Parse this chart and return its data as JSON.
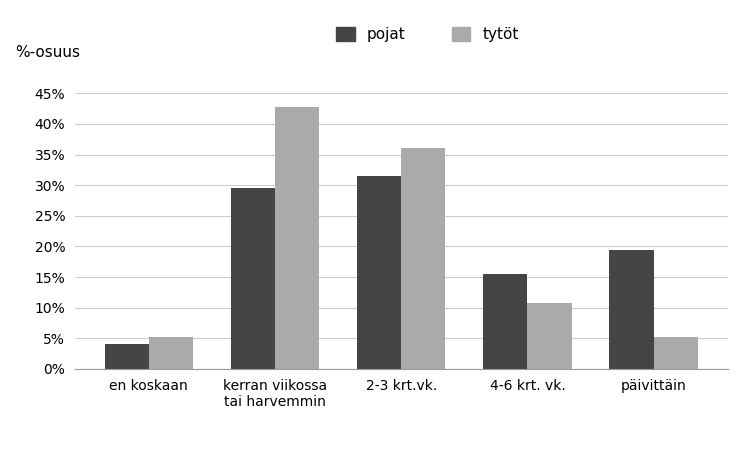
{
  "categories": [
    "en koskaan",
    "kerran viikossa\ntai harvemmin",
    "2-3 krt.vk.",
    "4-6 krt. vk.",
    "päivittäin"
  ],
  "pojat": [
    4.0,
    29.5,
    31.5,
    15.5,
    19.5
  ],
  "tytot": [
    5.3,
    42.7,
    36.0,
    10.7,
    5.3
  ],
  "pojat_color": "#454545",
  "tytot_color": "#aaaaaa",
  "ylabel_text": "%-osuus",
  "ylim": [
    0,
    47
  ],
  "yticks": [
    0,
    5,
    10,
    15,
    20,
    25,
    30,
    35,
    40,
    45
  ],
  "ytick_labels": [
    "0%",
    "5%",
    "10%",
    "15%",
    "20%",
    "25%",
    "30%",
    "35%",
    "40%",
    "45%"
  ],
  "legend_pojat": "pojat",
  "legend_tytot": "tytöt",
  "bar_width": 0.35,
  "background_color": "#ffffff",
  "grid_color": "#cccccc",
  "fontsize_ticks": 10,
  "fontsize_legend": 11,
  "fontsize_ylabel": 11
}
